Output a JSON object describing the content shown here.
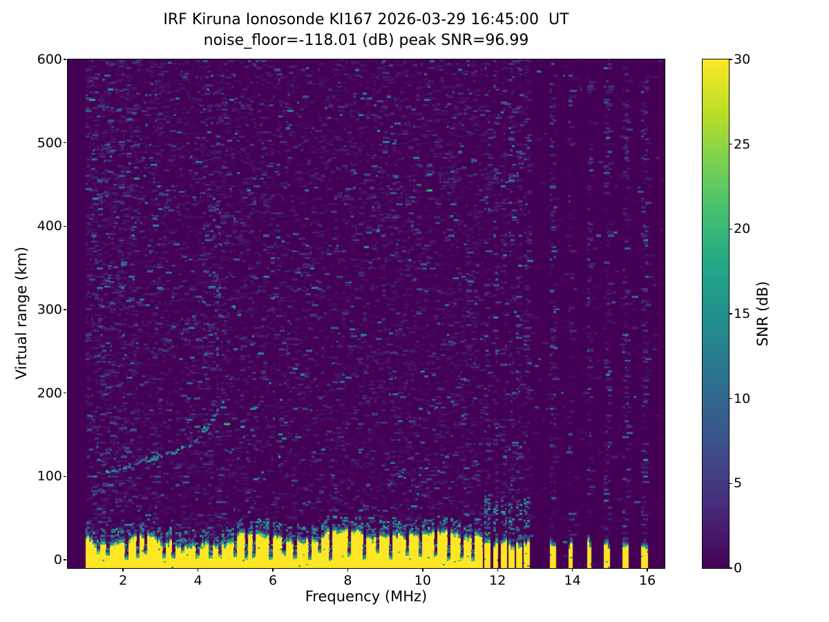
{
  "chart_data": {
    "type": "heatmap",
    "title": "IRF Kiruna Ionosonde KI167 2026-03-29 16:45:00  UT",
    "subtitle": "noise_floor=-118.01 (dB) peak SNR=96.99",
    "station_id": "KI167",
    "timestamp_ut": "2026-03-29 16:45:00",
    "noise_floor_db": -118.01,
    "peak_snr_db": 96.99,
    "xlabel": "Frequency (MHz)",
    "ylabel": "Virtual range (km)",
    "colorbar_label": "SNR (dB)",
    "xlim_mhz": [
      0.52,
      16.46
    ],
    "ylim_km": [
      -10,
      600
    ],
    "snr_range_db": [
      0,
      30
    ],
    "x_ticks": [
      2,
      4,
      6,
      8,
      10,
      12,
      14,
      16
    ],
    "y_ticks": [
      0,
      100,
      200,
      300,
      400,
      500,
      600
    ],
    "colorbar_ticks": [
      0,
      5,
      10,
      15,
      20,
      25,
      30
    ],
    "colormap": "viridis",
    "colormap_stops": [
      [
        0.0,
        "#440154"
      ],
      [
        0.1,
        "#482475"
      ],
      [
        0.2,
        "#414487"
      ],
      [
        0.3,
        "#355f8d"
      ],
      [
        0.4,
        "#2a788e"
      ],
      [
        0.5,
        "#21918c"
      ],
      [
        0.6,
        "#22a884"
      ],
      [
        0.7,
        "#44bf70"
      ],
      [
        0.8,
        "#7ad151"
      ],
      [
        0.9,
        "#bddf26"
      ],
      [
        1.0,
        "#fde725"
      ]
    ],
    "grid": false,
    "legend": "colorbar-right",
    "render_seed": 20260329,
    "features": {
      "sweep_freq_range_mhz": [
        1.0,
        16.42
      ],
      "ground_clutter": {
        "freq_range_mhz": [
          1.0,
          11.62
        ],
        "mean_top_km": 30,
        "jitter_km": 9,
        "snr_db": 30
      },
      "clutter_notches_mhz": [
        1.35,
        1.62,
        2.08,
        2.42,
        2.62,
        3.08,
        3.35,
        3.62,
        4.0,
        4.35,
        4.62,
        5.0,
        5.3,
        5.52,
        5.95,
        6.31,
        6.62,
        7.0,
        7.26,
        7.55,
        8.03,
        8.45,
        8.8,
        9.15,
        9.6,
        9.97,
        10.35,
        10.7,
        11.05,
        11.35
      ],
      "echo_trace_points": [
        [
          1.55,
          104
        ],
        [
          1.9,
          108
        ],
        [
          2.2,
          114
        ],
        [
          2.6,
          119
        ],
        [
          3.0,
          124
        ],
        [
          3.4,
          129
        ],
        [
          3.7,
          136
        ],
        [
          3.95,
          145
        ],
        [
          4.15,
          154
        ],
        [
          4.35,
          165
        ],
        [
          4.5,
          178
        ],
        [
          4.62,
          200
        ]
      ],
      "second_hop": {
        "freq_range_mhz": [
          3.5,
          4.62
        ],
        "range_multiplier": 2
      },
      "spread_riser": {
        "freq_range_mhz": [
          4.4,
          4.62
        ],
        "range_km": [
          195,
          435
        ]
      },
      "x_mode_trace_points": [
        [
          4.72,
          126
        ],
        [
          4.9,
          131
        ],
        [
          5.08,
          138
        ],
        [
          5.25,
          147
        ]
      ],
      "rfi_stripes_mhz": [
        11.74,
        11.95,
        12.16,
        12.37,
        12.58,
        12.79,
        13.46,
        13.95,
        14.45,
        14.93,
        15.43,
        15.92
      ],
      "rfi_stripe_width_mhz": 0.14,
      "noise_speckle": {
        "coverage": 0.3,
        "mean_db": 1.6
      }
    }
  }
}
